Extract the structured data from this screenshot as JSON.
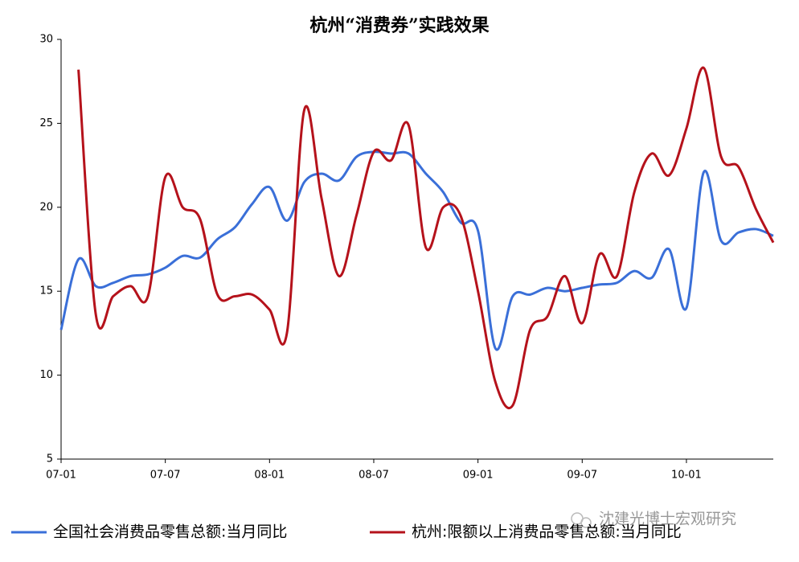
{
  "chart_data": {
    "type": "line",
    "title": "杭州“消费券”实践效果",
    "categories": [
      "07-01",
      null,
      null,
      null,
      null,
      null,
      "07-07",
      null,
      null,
      null,
      null,
      null,
      "08-01",
      null,
      null,
      null,
      null,
      null,
      "08-07",
      null,
      null,
      null,
      null,
      null,
      "09-01",
      null,
      null,
      null,
      null,
      null,
      "09-07",
      null,
      null,
      null,
      null,
      null,
      "10-01",
      null,
      null,
      null,
      null,
      null
    ],
    "series": [
      {
        "name": "全国社会消费品零售总额:当月同比",
        "color": "#3a6fd8",
        "values": [
          12.7,
          16.9,
          15.3,
          15.5,
          15.9,
          16.0,
          16.4,
          17.1,
          17.0,
          18.1,
          18.8,
          20.2,
          21.2,
          19.2,
          21.5,
          22.0,
          21.6,
          23.0,
          23.3,
          23.2,
          23.2,
          22.0,
          20.9,
          19.1,
          18.6,
          11.6,
          14.7,
          14.8,
          15.2,
          15.0,
          15.2,
          15.4,
          15.5,
          16.2,
          15.8,
          17.5,
          14.0,
          22.1,
          18.0,
          18.5,
          18.7,
          18.3
        ]
      },
      {
        "name": "杭州:限额以上消费品零售总额:当月同比",
        "color": "#b5121b",
        "values": [
          null,
          28.2,
          13.6,
          14.7,
          15.3,
          14.7,
          21.8,
          20.0,
          19.3,
          14.8,
          14.7,
          14.8,
          13.9,
          12.5,
          25.8,
          20.5,
          15.9,
          19.5,
          23.3,
          22.8,
          24.9,
          17.6,
          20.0,
          19.5,
          15.0,
          9.6,
          8.2,
          12.7,
          13.5,
          15.9,
          13.1,
          17.2,
          15.9,
          20.9,
          23.2,
          21.9,
          24.7,
          28.3,
          23.0,
          22.4,
          19.9,
          17.9
        ]
      }
    ],
    "ylim": [
      5,
      30
    ],
    "yticks": [
      5,
      10,
      15,
      20,
      25,
      30
    ],
    "watermark": "沈建光博士宏观研究"
  }
}
